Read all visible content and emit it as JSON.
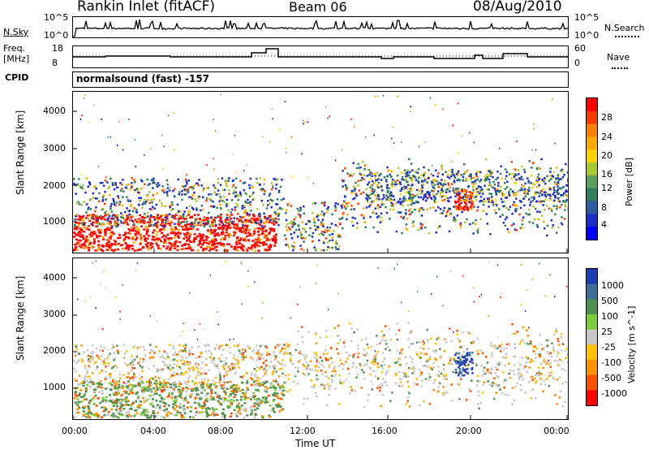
{
  "header": {
    "station": "Rankin Inlet (fitACF)",
    "beam": "Beam 06",
    "date": "08/Aug/2010"
  },
  "nsky_panel": {
    "left_label": "N.Sky",
    "right_label": "N.Search",
    "left_ticks": [
      "10^5",
      "10^0"
    ],
    "right_ticks": [
      "10^5",
      "10^0"
    ]
  },
  "freq_panel": {
    "left_label_1": "Freq.",
    "left_label_2": "[MHz]",
    "right_label": "Nave",
    "left_ticks": [
      "18",
      "8"
    ],
    "right_ticks": [
      "60",
      "0"
    ]
  },
  "cpid": {
    "label": "CPID",
    "value": "normalsound (fast) -157"
  },
  "chart_data": [
    {
      "type": "heatmap",
      "title": "",
      "ylabel": "Slant Range [km]",
      "xlabel": "",
      "colorbar_label": "Power [dB]",
      "colorbar_ticks": [
        "28",
        "24",
        "20",
        "16",
        "12",
        "8",
        "4"
      ],
      "colorbar_colors": [
        "#ff0000",
        "#ff3b00",
        "#ff7f00",
        "#ffaa00",
        "#ffd200",
        "#a8c832",
        "#5aa05a",
        "#2f7f5f",
        "#2d5aa0",
        "#1e2dc8",
        "#0000ff"
      ],
      "y_ticks": [
        "4000",
        "3000",
        "2000",
        "1000"
      ],
      "ylim": [
        180,
        4500
      ],
      "x_ticks": [
        "00:00",
        "04:00",
        "08:00",
        "12:00",
        "16:00",
        "20:00",
        "00:00"
      ]
    },
    {
      "type": "heatmap",
      "title": "",
      "ylabel": "Slant Range [km]",
      "xlabel": "Time UT",
      "colorbar_label": "Velocity [m s^-1]",
      "colorbar_ticks": [
        "1000",
        "500",
        "100",
        "25",
        "-25",
        "-100",
        "-500",
        "-1000"
      ],
      "colorbar_colors": [
        "#1e3cb4",
        "#3c6e9a",
        "#4f8f4f",
        "#7ccc3c",
        "#c8c8c8",
        "#ffc000",
        "#ff9000",
        "#ff5000",
        "#ff0000"
      ],
      "y_ticks": [
        "4000",
        "3000",
        "2000",
        "1000"
      ],
      "ylim": [
        180,
        4500
      ],
      "x_ticks": [
        "00:00",
        "04:00",
        "08:00",
        "12:00",
        "16:00",
        "20:00",
        "00:00"
      ]
    }
  ]
}
